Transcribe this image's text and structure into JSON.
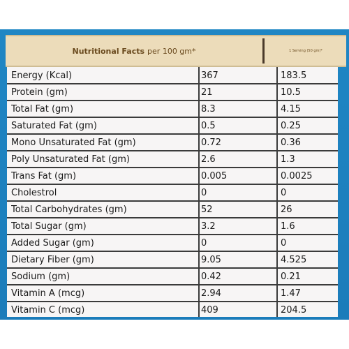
{
  "header": {
    "title_bold": "Nutritional Facts",
    "title_rest": "per 100 gm*",
    "serving_heading": "1 Serving (50 gm)*"
  },
  "rows": [
    {
      "nutrient": "Energy (Kcal)",
      "per_100g": "367",
      "per_serving": "183.5"
    },
    {
      "nutrient": "Protein (gm)",
      "per_100g": "21",
      "per_serving": "10.5"
    },
    {
      "nutrient": "Total Fat (gm)",
      "per_100g": "8.3",
      "per_serving": "4.15"
    },
    {
      "nutrient": "Saturated Fat (gm)",
      "per_100g": "0.5",
      "per_serving": "0.25"
    },
    {
      "nutrient": "Mono Unsaturated Fat (gm)",
      "per_100g": "0.72",
      "per_serving": "0.36"
    },
    {
      "nutrient": "Poly Unsaturated Fat (gm)",
      "per_100g": "2.6",
      "per_serving": "1.3"
    },
    {
      "nutrient": "Trans Fat (gm)",
      "per_100g": "0.005",
      "per_serving": "0.0025"
    },
    {
      "nutrient": "Cholestrol",
      "per_100g": "0",
      "per_serving": "0"
    },
    {
      "nutrient": "Total Carbohydrates (gm)",
      "per_100g": "52",
      "per_serving": "26"
    },
    {
      "nutrient": "Total Sugar (gm)",
      "per_100g": "3.2",
      "per_serving": "1.6"
    },
    {
      "nutrient": "Added Sugar (gm)",
      "per_100g": "0",
      "per_serving": "0"
    },
    {
      "nutrient": "Dietary Fiber (gm)",
      "per_100g": "9.05",
      "per_serving": "4.525"
    },
    {
      "nutrient": "Sodium (gm)",
      "per_100g": "0.42",
      "per_serving": "0.21"
    },
    {
      "nutrient": "Vitamin A (mcg)",
      "per_100g": "2.94",
      "per_serving": "1.47"
    },
    {
      "nutrient": "Vitamin C (mcg)",
      "per_100g": "409",
      "per_serving": "204.5"
    }
  ]
}
